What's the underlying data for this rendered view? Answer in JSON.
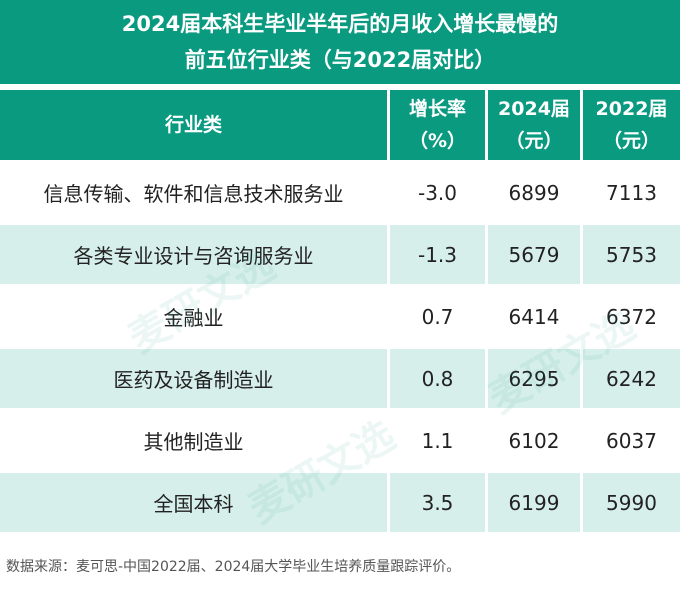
{
  "title": {
    "line1": "2024届本科生毕业半年后的月收入增长最慢的",
    "line2": "前五位行业类（与2022届对比）"
  },
  "columns": [
    {
      "line1": "行业类",
      "line2": ""
    },
    {
      "line1": "增长率",
      "line2": "（%）"
    },
    {
      "line1": "2024届",
      "line2": "（元）"
    },
    {
      "line1": "2022届",
      "line2": "（元）"
    }
  ],
  "rows": [
    {
      "industry": "信息传输、软件和信息技术服务业",
      "growth": "-3.0",
      "y2024": "6899",
      "y2022": "7113"
    },
    {
      "industry": "各类专业设计与咨询服务业",
      "growth": "-1.3",
      "y2024": "5679",
      "y2022": "5753"
    },
    {
      "industry": "金融业",
      "growth": "0.7",
      "y2024": "6414",
      "y2022": "6372"
    },
    {
      "industry": "医药及设备制造业",
      "growth": "0.8",
      "y2024": "6295",
      "y2022": "6242"
    },
    {
      "industry": "其他制造业",
      "growth": "1.1",
      "y2024": "6102",
      "y2022": "6037"
    },
    {
      "industry": "全国本科",
      "growth": "3.5",
      "y2024": "6199",
      "y2022": "5990"
    }
  ],
  "source_note": "数据来源：麦可思-中国2022届、2024届大学毕业生培养质量跟踪评价。",
  "watermark": "麦研文选",
  "colors": {
    "header": "#0a9a80",
    "alt_row": "#d6efea"
  }
}
